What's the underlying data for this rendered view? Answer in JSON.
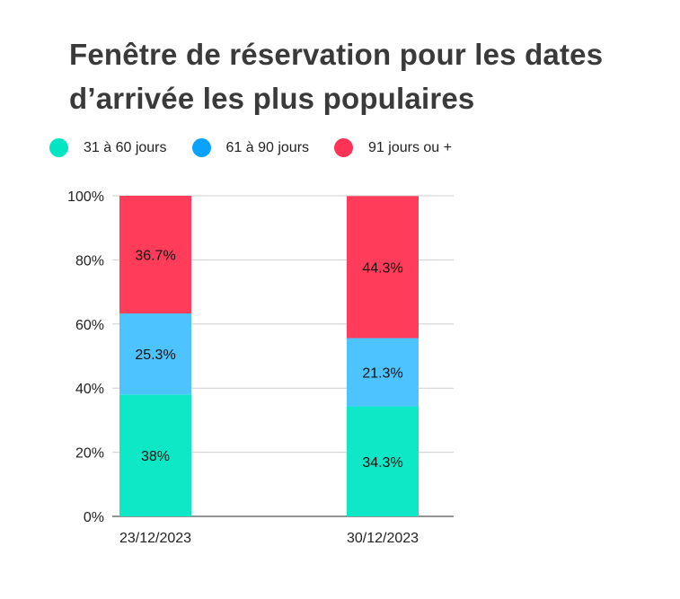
{
  "chart_data": {
    "type": "bar",
    "stacked": true,
    "title": "Fenêtre de réservation pour les dates d’arrivée les plus populaires",
    "categories": [
      "23/12/2023",
      "30/12/2023"
    ],
    "series": [
      {
        "name": "31 à 60 jours",
        "color": "#0ee8c6",
        "values": [
          38,
          34.3
        ],
        "labels": [
          "38%",
          "34.3%"
        ]
      },
      {
        "name": "61 à 90 jours",
        "color": "#4dc3ff",
        "values": [
          25.3,
          21.3
        ],
        "labels": [
          "25.3%",
          "21.3%"
        ]
      },
      {
        "name": "91 jours ou +",
        "color": "#ff3d5a",
        "values": [
          36.7,
          44.3
        ],
        "labels": [
          "36.7%",
          "44.3%"
        ]
      }
    ],
    "ylim": [
      0,
      100
    ],
    "yticks": [
      "0%",
      "20%",
      "40%",
      "60%",
      "80%",
      "100%"
    ],
    "grid": true,
    "legend_position": "top-left",
    "legend_dot_colors": [
      "#00e6c3",
      "#0aa2ff",
      "#ff3355"
    ]
  }
}
